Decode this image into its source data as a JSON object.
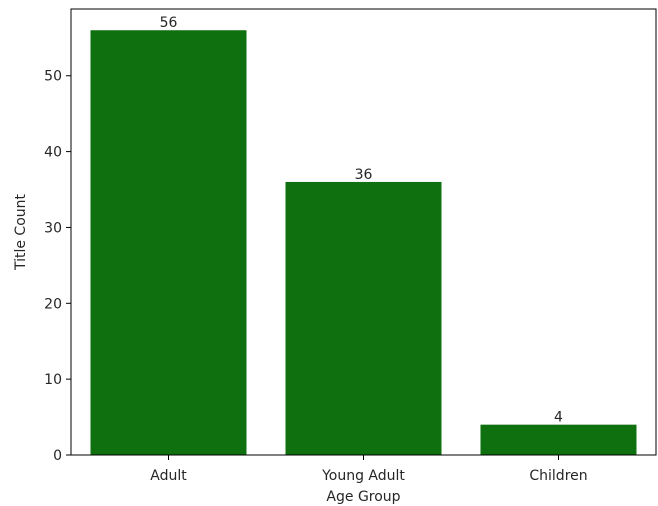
{
  "chart_data": {
    "type": "bar",
    "categories": [
      "Adult",
      "Young Adult",
      "Children"
    ],
    "values": [
      56,
      36,
      4
    ],
    "data_labels": [
      "56",
      "36",
      "4"
    ],
    "xlabel": "Age Group",
    "ylabel": "Title Count",
    "ylim": [
      0,
      58.8
    ],
    "yticks": [
      0,
      10,
      20,
      30,
      40,
      50
    ],
    "ytick_labels": [
      "0",
      "10",
      "20",
      "30",
      "40",
      "50"
    ],
    "bar_color": "#0e700e",
    "grid": false,
    "legend": "none"
  }
}
